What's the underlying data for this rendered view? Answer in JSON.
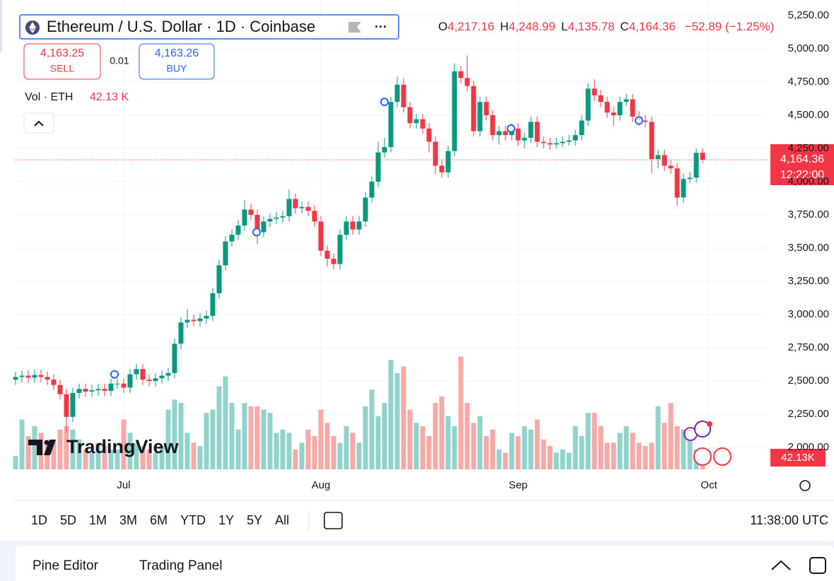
{
  "header": {
    "title": "Ethereum / U.S. Dollar · 1D · Coinbase",
    "ohlc": [
      {
        "key": "O",
        "value": "4,217.16"
      },
      {
        "key": "H",
        "value": "4,248.99"
      },
      {
        "key": "L",
        "value": "4,135.78"
      },
      {
        "key": "C",
        "value": "4,164.36"
      }
    ],
    "change": "−52.89 (−1.25%)"
  },
  "trade": {
    "sell_price": "4,163.25",
    "sell": "SELL",
    "spread": "0.01",
    "buy_price": "4,163.26",
    "buy": "BUY"
  },
  "volume_legend": {
    "label": "Vol · ETH",
    "value": "42.13 K"
  },
  "price_label": {
    "price": "4,164.36",
    "countdown": "12:22:00"
  },
  "volume_axis_label": "42.13K",
  "logo": "TradingView",
  "ranges": [
    "1D",
    "5D",
    "1M",
    "3M",
    "6M",
    "YTD",
    "1Y",
    "5Y",
    "All"
  ],
  "clock": "11:38:00 UTC",
  "panel_tabs": [
    "Pine Editor",
    "Trading Panel"
  ],
  "chart_data": {
    "type": "candlestick",
    "up_color": "#089981",
    "down_color": "#f23645",
    "up_volume_color": "#92d2cc",
    "down_volume_color": "#f7a9a7",
    "grid": true,
    "xlim": [
      0,
      118.1
    ],
    "xticks": [
      {
        "value": 17,
        "label": "Jul"
      },
      {
        "value": 48,
        "label": "Aug"
      },
      {
        "value": 79,
        "label": "Sep"
      },
      {
        "value": 109,
        "label": "Oct"
      }
    ],
    "ylim": [
      1835,
      5367
    ],
    "yticks": [
      {
        "value": 5250,
        "label": "5,250.00"
      },
      {
        "value": 5000,
        "label": "5,000.00"
      },
      {
        "value": 4750,
        "label": "4,750.00"
      },
      {
        "value": 4500,
        "label": "4,500.00"
      },
      {
        "value": 4250,
        "label": "4,250.00"
      },
      {
        "value": 4000,
        "label": "4,000.00"
      },
      {
        "value": 3750,
        "label": "3,750.00"
      },
      {
        "value": 3500,
        "label": "3,500.00"
      },
      {
        "value": 3250,
        "label": "3,250.00"
      },
      {
        "value": 3000,
        "label": "3,000.00"
      },
      {
        "value": 2750,
        "label": "2,750.00"
      },
      {
        "value": 2500,
        "label": "2,500.00"
      },
      {
        "value": 2250,
        "label": "2,250.00"
      },
      {
        "value": 2000,
        "label": "2,000.00"
      }
    ],
    "current_price": 4164.36,
    "vlim": [
      0,
      345
    ],
    "ohlc": [
      [
        2510,
        2570,
        2470,
        2530
      ],
      [
        2530,
        2580,
        2490,
        2540
      ],
      [
        2540,
        2580,
        2485,
        2525
      ],
      [
        2525,
        2585,
        2485,
        2545
      ],
      [
        2545,
        2585,
        2490,
        2530
      ],
      [
        2530,
        2570,
        2470,
        2510
      ],
      [
        2510,
        2550,
        2430,
        2470
      ],
      [
        2470,
        2510,
        2360,
        2400
      ],
      [
        2400,
        2440,
        2110,
        2230
      ],
      [
        2230,
        2450,
        2190,
        2410
      ],
      [
        2410,
        2480,
        2370,
        2440
      ],
      [
        2440,
        2480,
        2380,
        2420
      ],
      [
        2420,
        2470,
        2380,
        2430
      ],
      [
        2430,
        2480,
        2390,
        2440
      ],
      [
        2440,
        2480,
        2385,
        2425
      ],
      [
        2425,
        2520,
        2385,
        2480
      ],
      [
        2480,
        2520,
        2440,
        2480
      ],
      [
        2480,
        2520,
        2410,
        2450
      ],
      [
        2450,
        2590,
        2410,
        2550
      ],
      [
        2550,
        2630,
        2510,
        2590
      ],
      [
        2590,
        2630,
        2470,
        2510
      ],
      [
        2510,
        2550,
        2460,
        2500
      ],
      [
        2500,
        2560,
        2460,
        2520
      ],
      [
        2520,
        2580,
        2480,
        2540
      ],
      [
        2540,
        2600,
        2500,
        2560
      ],
      [
        2560,
        2820,
        2520,
        2780
      ],
      [
        2780,
        2980,
        2740,
        2940
      ],
      [
        2940,
        3040,
        2900,
        2960
      ],
      [
        2960,
        3000,
        2910,
        2950
      ],
      [
        2950,
        3010,
        2910,
        2970
      ],
      [
        2970,
        3030,
        2930,
        2990
      ],
      [
        2990,
        3200,
        2950,
        3160
      ],
      [
        3160,
        3410,
        3120,
        3370
      ],
      [
        3370,
        3590,
        3330,
        3550
      ],
      [
        3550,
        3640,
        3510,
        3600
      ],
      [
        3600,
        3710,
        3560,
        3670
      ],
      [
        3670,
        3860,
        3630,
        3790
      ],
      [
        3790,
        3830,
        3710,
        3750
      ],
      [
        3750,
        3790,
        3530,
        3620
      ],
      [
        3620,
        3740,
        3580,
        3700
      ],
      [
        3700,
        3760,
        3660,
        3720
      ],
      [
        3720,
        3770,
        3680,
        3730
      ],
      [
        3730,
        3780,
        3690,
        3740
      ],
      [
        3740,
        3940,
        3700,
        3870
      ],
      [
        3870,
        3910,
        3760,
        3800
      ],
      [
        3800,
        3850,
        3760,
        3810
      ],
      [
        3810,
        3850,
        3740,
        3780
      ],
      [
        3780,
        3820,
        3660,
        3700
      ],
      [
        3700,
        3740,
        3440,
        3480
      ],
      [
        3480,
        3520,
        3360,
        3420
      ],
      [
        3420,
        3460,
        3340,
        3380
      ],
      [
        3380,
        3640,
        3340,
        3600
      ],
      [
        3600,
        3740,
        3560,
        3700
      ],
      [
        3700,
        3740,
        3600,
        3640
      ],
      [
        3640,
        3740,
        3600,
        3700
      ],
      [
        3700,
        3920,
        3660,
        3880
      ],
      [
        3880,
        4040,
        3840,
        4000
      ],
      [
        4000,
        4300,
        3960,
        4220
      ],
      [
        4220,
        4330,
        4180,
        4260
      ],
      [
        4260,
        4640,
        4220,
        4600
      ],
      [
        4600,
        4790,
        4560,
        4730
      ],
      [
        4730,
        4780,
        4520,
        4560
      ],
      [
        4560,
        4600,
        4400,
        4440
      ],
      [
        4440,
        4510,
        4400,
        4470
      ],
      [
        4470,
        4510,
        4360,
        4400
      ],
      [
        4400,
        4440,
        4220,
        4300
      ],
      [
        4300,
        4340,
        4060,
        4120
      ],
      [
        4120,
        4160,
        4030,
        4070
      ],
      [
        4070,
        4270,
        4030,
        4230
      ],
      [
        4230,
        4890,
        4190,
        4830
      ],
      [
        4830,
        4870,
        4740,
        4780
      ],
      [
        4780,
        4950,
        4680,
        4720
      ],
      [
        4720,
        4760,
        4340,
        4380
      ],
      [
        4380,
        4640,
        4340,
        4600
      ],
      [
        4600,
        4640,
        4460,
        4500
      ],
      [
        4500,
        4540,
        4310,
        4350
      ],
      [
        4350,
        4420,
        4280,
        4380
      ],
      [
        4380,
        4420,
        4310,
        4350
      ],
      [
        4350,
        4440,
        4310,
        4400
      ],
      [
        4400,
        4440,
        4270,
        4310
      ],
      [
        4310,
        4370,
        4250,
        4330
      ],
      [
        4330,
        4490,
        4290,
        4450
      ],
      [
        4450,
        4490,
        4260,
        4300
      ],
      [
        4300,
        4340,
        4250,
        4290
      ],
      [
        4290,
        4330,
        4240,
        4280
      ],
      [
        4280,
        4330,
        4250,
        4290
      ],
      [
        4290,
        4340,
        4260,
        4300
      ],
      [
        4300,
        4350,
        4270,
        4310
      ],
      [
        4310,
        4390,
        4270,
        4350
      ],
      [
        4350,
        4500,
        4310,
        4460
      ],
      [
        4460,
        4740,
        4420,
        4700
      ],
      [
        4700,
        4770,
        4610,
        4650
      ],
      [
        4650,
        4690,
        4560,
        4600
      ],
      [
        4600,
        4640,
        4480,
        4520
      ],
      [
        4520,
        4560,
        4420,
        4500
      ],
      [
        4500,
        4640,
        4460,
        4600
      ],
      [
        4600,
        4660,
        4570,
        4620
      ],
      [
        4620,
        4660,
        4450,
        4490
      ],
      [
        4490,
        4530,
        4420,
        4460
      ],
      [
        4460,
        4500,
        4410,
        4450
      ],
      [
        4450,
        4490,
        4060,
        4170
      ],
      [
        4170,
        4240,
        4100,
        4200
      ],
      [
        4200,
        4240,
        4080,
        4120
      ],
      [
        4120,
        4160,
        4060,
        4100
      ],
      [
        4100,
        4140,
        3820,
        3880
      ],
      [
        3880,
        4060,
        3840,
        4020
      ],
      [
        4020,
        4070,
        3990,
        4030
      ],
      [
        4030,
        4250,
        3990,
        4217.25
      ],
      [
        4217.16,
        4248.99,
        4135.78,
        4164.36
      ]
    ],
    "volume": [
      40,
      150,
      100,
      130,
      110,
      80,
      90,
      120,
      130,
      120,
      90,
      60,
      50,
      80,
      70,
      60,
      60,
      150,
      110,
      80,
      70,
      60,
      50,
      70,
      180,
      210,
      200,
      110,
      80,
      70,
      170,
      180,
      250,
      280,
      200,
      120,
      200,
      190,
      190,
      180,
      170,
      110,
      120,
      110,
      60,
      80,
      120,
      100,
      180,
      140,
      100,
      80,
      130,
      110,
      80,
      190,
      240,
      160,
      200,
      330,
      290,
      310,
      180,
      140,
      130,
      100,
      200,
      220,
      160,
      130,
      340,
      200,
      140,
      160,
      100,
      120,
      60,
      50,
      110,
      100,
      130,
      120,
      150,
      90,
      70,
      50,
      60,
      50,
      130,
      100,
      170,
      170,
      130,
      80,
      80,
      110,
      130,
      110,
      80,
      70,
      80,
      190,
      140,
      200,
      130,
      120,
      90,
      60,
      42.13
    ]
  }
}
